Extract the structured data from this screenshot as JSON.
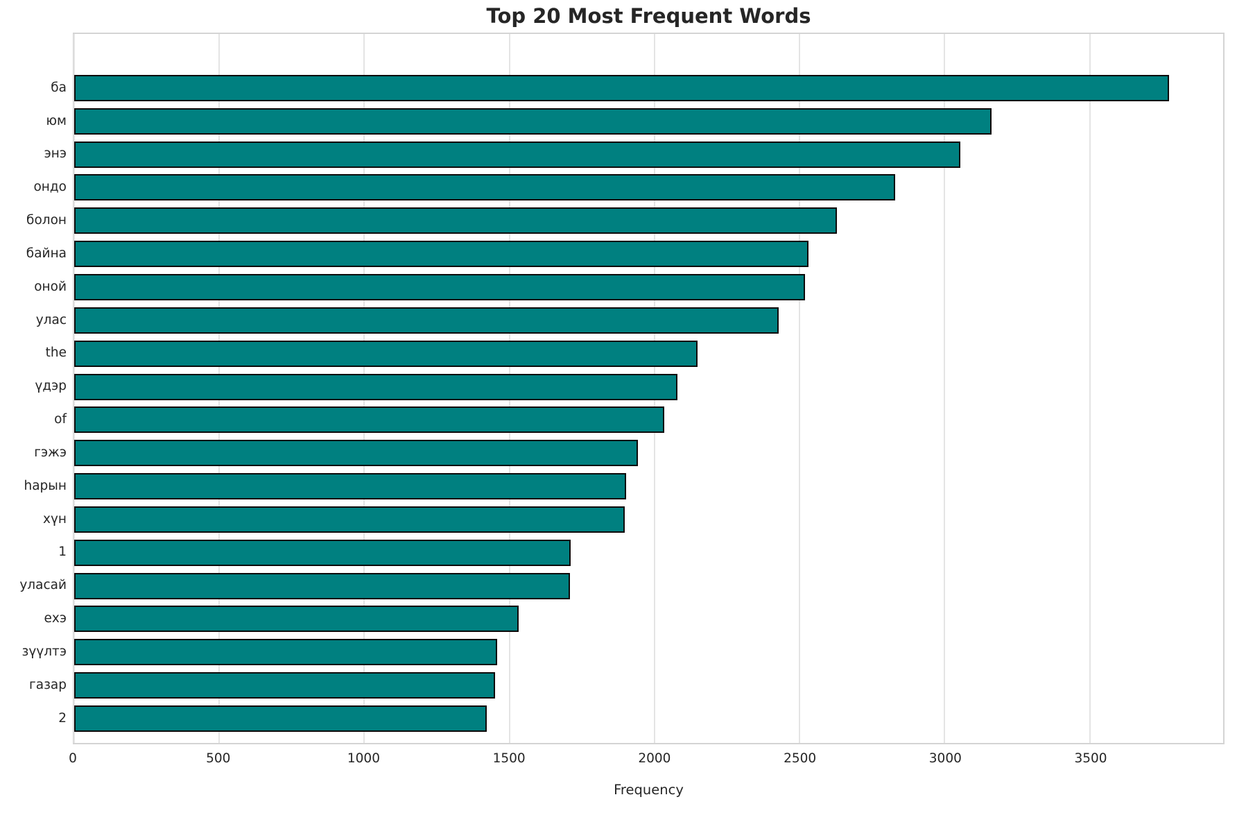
{
  "chart": {
    "title": "Top 20 Most Frequent Words",
    "xlabel": "Frequency"
  },
  "chart_data": {
    "type": "bar",
    "orientation": "horizontal",
    "title": "Top 20 Most Frequent Words",
    "xlabel": "Frequency",
    "ylabel": "",
    "categories": [
      "ба",
      "юм",
      "энэ",
      "ондо",
      "болон",
      "байна",
      "оной",
      "улас",
      "the",
      "үдэр",
      "of",
      "гэжэ",
      "һарын",
      "хүн",
      "1",
      "уласай",
      "ехэ",
      "зүүлтэ",
      "газар",
      "2"
    ],
    "values": [
      3773,
      3161,
      3055,
      2829,
      2628,
      2531,
      2519,
      2429,
      2148,
      2079,
      2033,
      1943,
      1903,
      1898,
      1712,
      1709,
      1531,
      1457,
      1450,
      1421
    ],
    "xticks": [
      0,
      500,
      1000,
      1500,
      2000,
      2500,
      3000,
      3500
    ],
    "xlim": [
      0,
      3960
    ],
    "grid": true,
    "legend": null,
    "bar_color": "#008080",
    "bar_edge_color": "#0a0a0a"
  }
}
